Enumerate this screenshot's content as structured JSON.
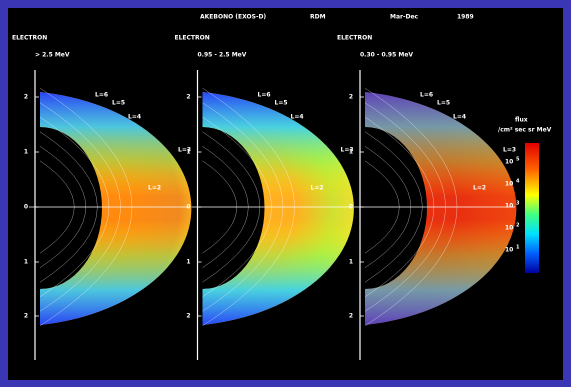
{
  "header": {
    "mission": "AKEBONO (EXOS-D)",
    "instrument": "RDM",
    "period": "Mar-Dec",
    "year": "1989"
  },
  "panels": [
    {
      "species": "ELECTRON",
      "energy": "> 2.5 MeV"
    },
    {
      "species": "ELECTRON",
      "energy": "0.95 - 2.5 MeV"
    },
    {
      "species": "ELECTRON",
      "energy": "0.30 - 0.95 MeV"
    }
  ],
  "axis_labels": [
    "2",
    "1",
    "0",
    "1",
    "2"
  ],
  "l_shells": [
    "L=6",
    "L=5",
    "L=4",
    "L=3",
    "L=2"
  ],
  "colorbar": {
    "title": "flux",
    "units": "/cm² sec sr MeV",
    "labels": [
      {
        "base": "10",
        "exponent": "5"
      },
      {
        "base": "10",
        "exponent": "4"
      },
      {
        "base": "10",
        "exponent": "3"
      },
      {
        "base": "10",
        "exponent": "2"
      },
      {
        "base": "10",
        "exponent": "1"
      }
    ]
  }
}
